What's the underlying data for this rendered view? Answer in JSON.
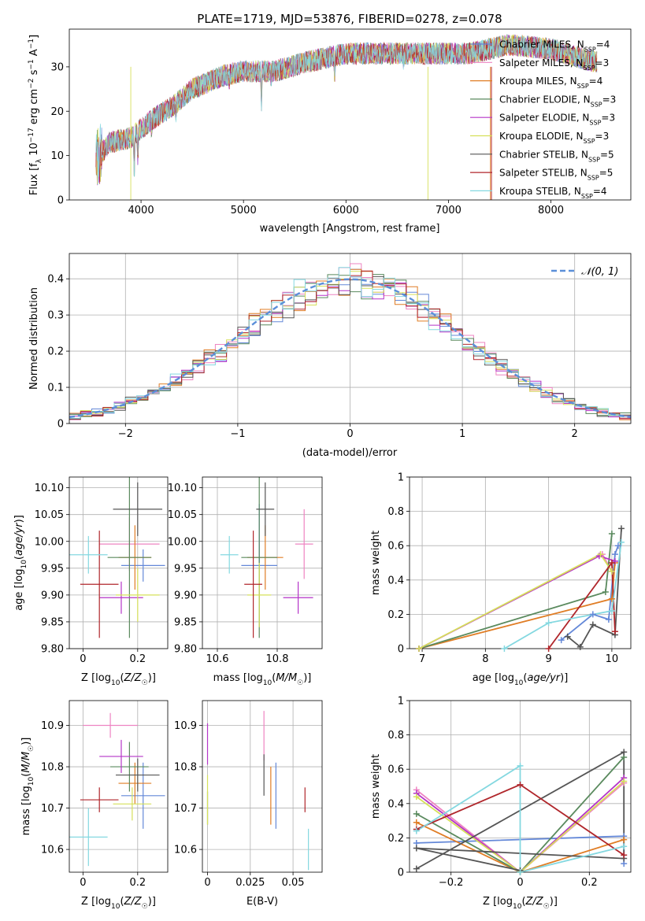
{
  "title": "PLATE=1719, MJD=53876, FIBERID=0278, z=0.078",
  "models": [
    {
      "name": "Chabrier MILES, N",
      "nssp": "4",
      "color": "#6488d8"
    },
    {
      "name": "Salpeter MILES, N",
      "nssp": "3",
      "color": "#ee84c2"
    },
    {
      "name": "Kroupa MILES, N",
      "nssp": "4",
      "color": "#e07d25"
    },
    {
      "name": "Chabrier ELODIE, N",
      "nssp": "3",
      "color": "#5a8a5e"
    },
    {
      "name": "Salpeter ELODIE, N",
      "nssp": "3",
      "color": "#b535c8"
    },
    {
      "name": "Kroupa ELODIE, N",
      "nssp": "3",
      "color": "#d6e05a"
    },
    {
      "name": "Chabrier STELIB, N",
      "nssp": "5",
      "color": "#555555"
    },
    {
      "name": "Salpeter STELIB, N",
      "nssp": "5",
      "color": "#b0262b"
    },
    {
      "name": "Kroupa STELIB, N",
      "nssp": "4",
      "color": "#84d8e0"
    }
  ],
  "chart_data": [
    {
      "type": "line",
      "name": "spectrum",
      "title": "PLATE=1719, MJD=53876, FIBERID=0278, z=0.078",
      "xlabel": "wavelength [Angstrom, rest frame]",
      "ylabel": "Flux [f_λ 10^-17 erg cm^-2 s^-1 A^-1]",
      "xlim": [
        3300,
        8780
      ],
      "ylim": [
        0,
        38.5
      ],
      "xticks": [
        4000,
        5000,
        6000,
        7000,
        8000
      ],
      "yticks": [
        0,
        10,
        20,
        30
      ],
      "grid": false,
      "legend": "right",
      "continuum": {
        "x": [
          3560,
          3700,
          3900,
          4100,
          4300,
          4500,
          4800,
          5000,
          5300,
          5600,
          6000,
          6400,
          6800,
          7200,
          7600,
          8000,
          8300,
          8450
        ],
        "y": [
          9,
          13,
          14,
          18,
          21,
          25,
          28,
          29,
          29,
          31,
          33,
          33,
          33,
          33,
          35,
          34,
          32,
          31
        ]
      }
    },
    {
      "type": "line",
      "name": "residual-histogram",
      "xlabel": "(data-model)/error",
      "ylabel": "Normed distribution",
      "xlim": [
        -2.5,
        2.5
      ],
      "ylim": [
        0,
        0.47
      ],
      "xticks": [
        -2,
        -1,
        0,
        1,
        2
      ],
      "yticks": [
        0,
        0.1,
        0.2,
        0.3,
        0.4
      ],
      "grid": true,
      "legend": "top-right",
      "series": [
        {
          "name": "𝒩(0, 1)",
          "style": "dashed",
          "color": "#5b8fd9"
        }
      ]
    },
    {
      "type": "scatter",
      "name": "age-vs-Z",
      "xlabel": "Z [log10(Z/Z☉)]",
      "ylabel": "age [log10(age/yr)]",
      "xlim": [
        -0.05,
        0.31
      ],
      "ylim": [
        9.8,
        10.12
      ],
      "xticks": [
        0.0,
        0.2
      ],
      "yticks": [
        9.8,
        9.85,
        9.9,
        9.95,
        10.0,
        10.05,
        10.1
      ],
      "grid": true,
      "points": [
        {
          "x": 0.22,
          "y": 9.955,
          "ex": 0.08,
          "ey": 0.03
        },
        {
          "x": 0.17,
          "y": 9.995,
          "ex": 0.11,
          "ey": 0.05
        },
        {
          "x": 0.19,
          "y": 9.97,
          "ex": 0.06,
          "ey": 0.06
        },
        {
          "x": 0.17,
          "y": 9.97,
          "ex": 0.08,
          "ey": 0.15
        },
        {
          "x": 0.14,
          "y": 9.895,
          "ex": 0.08,
          "ey": 0.03
        },
        {
          "x": 0.2,
          "y": 9.9,
          "ex": 0.08,
          "ey": 0.05
        },
        {
          "x": 0.2,
          "y": 10.06,
          "ex": 0.09,
          "ey": 0.05
        },
        {
          "x": 0.06,
          "y": 9.92,
          "ex": 0.07,
          "ey": 0.1
        },
        {
          "x": 0.02,
          "y": 9.975,
          "ex": 0.07,
          "ey": 0.035
        }
      ]
    },
    {
      "type": "scatter",
      "name": "age-vs-mass",
      "xlabel": "mass [log10(M/M☉)]",
      "ylabel": "",
      "xlim": [
        10.55,
        10.95
      ],
      "ylim": [
        9.8,
        10.12
      ],
      "xticks": [
        10.6,
        10.8
      ],
      "yticks": [
        9.8,
        9.85,
        9.9,
        9.95,
        10.0,
        10.05,
        10.1
      ],
      "grid": true,
      "points": [
        {
          "x": 10.74,
          "y": 9.955,
          "ex": 0.06,
          "ey": 0.115
        },
        {
          "x": 10.89,
          "y": 9.995,
          "ex": 0.03,
          "ey": 0.065
        },
        {
          "x": 10.76,
          "y": 9.97,
          "ex": 0.06,
          "ey": 0.06
        },
        {
          "x": 10.74,
          "y": 9.97,
          "ex": 0.06,
          "ey": 0.15
        },
        {
          "x": 10.87,
          "y": 9.895,
          "ex": 0.05,
          "ey": 0.03
        },
        {
          "x": 10.74,
          "y": 9.9,
          "ex": 0.04,
          "ey": 0.06
        },
        {
          "x": 10.76,
          "y": 10.06,
          "ex": 0.03,
          "ey": 0.05
        },
        {
          "x": 10.72,
          "y": 9.92,
          "ex": 0.03,
          "ey": 0.1
        },
        {
          "x": 10.64,
          "y": 9.975,
          "ex": 0.03,
          "ey": 0.035
        }
      ]
    },
    {
      "type": "line",
      "name": "mass-weight-vs-age",
      "xlabel": "age [log10(age/yr)]",
      "ylabel": "mass weight",
      "xlim": [
        6.8,
        10.3
      ],
      "ylim": [
        0,
        1.0
      ],
      "xticks": [
        7,
        8,
        9,
        10
      ],
      "yticks": [
        0,
        0.2,
        0.4,
        0.6,
        0.8,
        1.0
      ],
      "grid": true,
      "series": [
        {
          "x": [
            9.2,
            9.7,
            9.95,
            10.05,
            10.1
          ],
          "y": [
            0.05,
            0.2,
            0.17,
            0.55,
            0.6
          ]
        },
        {
          "x": [
            6.95,
            9.85,
            10.0
          ],
          "y": [
            0.0,
            0.55,
            0.45
          ]
        },
        {
          "x": [
            6.95,
            10.0,
            10.05
          ],
          "y": [
            0.0,
            0.29,
            0.5
          ]
        },
        {
          "x": [
            6.95,
            9.9,
            10.0
          ],
          "y": [
            0.0,
            0.33,
            0.67
          ]
        },
        {
          "x": [
            6.95,
            9.8,
            10.05
          ],
          "y": [
            0.0,
            0.54,
            0.51
          ]
        },
        {
          "x": [
            6.95,
            9.82,
            10.0
          ],
          "y": [
            0.0,
            0.55,
            0.45
          ]
        },
        {
          "x": [
            9.3,
            9.5,
            9.7,
            10.05,
            10.15
          ],
          "y": [
            0.07,
            0.01,
            0.14,
            0.08,
            0.7
          ]
        },
        {
          "x": [
            9.0,
            10.0,
            10.05
          ],
          "y": [
            0.0,
            0.5,
            0.1
          ]
        },
        {
          "x": [
            8.3,
            9.0,
            10.0,
            10.15
          ],
          "y": [
            0.0,
            0.15,
            0.22,
            0.62
          ]
        }
      ]
    },
    {
      "type": "scatter",
      "name": "mass-vs-Z",
      "xlabel": "Z [log10(Z/Z☉)]",
      "ylabel": "mass [log10(M/M☉)]",
      "xlim": [
        -0.05,
        0.31
      ],
      "ylim": [
        10.545,
        10.96
      ],
      "xticks": [
        0.0,
        0.2
      ],
      "yticks": [
        10.6,
        10.7,
        10.8,
        10.9
      ],
      "grid": true,
      "points": [
        {
          "x": 0.22,
          "y": 10.73,
          "ex": 0.08,
          "ey": 0.08
        },
        {
          "x": 0.1,
          "y": 10.9,
          "ex": 0.1,
          "ey": 0.03
        },
        {
          "x": 0.19,
          "y": 10.76,
          "ex": 0.06,
          "ey": 0.05
        },
        {
          "x": 0.17,
          "y": 10.8,
          "ex": 0.07,
          "ey": 0.06
        },
        {
          "x": 0.14,
          "y": 10.825,
          "ex": 0.08,
          "ey": 0.04
        },
        {
          "x": 0.18,
          "y": 10.71,
          "ex": 0.07,
          "ey": 0.04
        },
        {
          "x": 0.2,
          "y": 10.78,
          "ex": 0.08,
          "ey": 0.04
        },
        {
          "x": 0.06,
          "y": 10.72,
          "ex": 0.07,
          "ey": 0.03
        },
        {
          "x": 0.02,
          "y": 10.63,
          "ex": 0.07,
          "ey": 0.07
        }
      ]
    },
    {
      "type": "scatter",
      "name": "mass-vs-ebv",
      "xlabel": "E(B-V)",
      "ylabel": "",
      "xlim": [
        -0.003,
        0.067
      ],
      "ylim": [
        10.545,
        10.96
      ],
      "xticks": [
        0.0,
        0.025,
        0.05
      ],
      "yticks": [
        10.6,
        10.7,
        10.8,
        10.9
      ],
      "grid": true,
      "points": [
        {
          "x": 0.04,
          "y": 10.73,
          "ex": 0,
          "ey": 0.08
        },
        {
          "x": 0.033,
          "y": 10.875,
          "ex": 0,
          "ey": 0.06
        },
        {
          "x": 0.037,
          "y": 10.73,
          "ex": 0,
          "ey": 0.07
        },
        {
          "x": 0.0,
          "y": 10.7,
          "ex": 0,
          "ey": 0.04
        },
        {
          "x": 0.0,
          "y": 10.855,
          "ex": 0,
          "ey": 0.05
        },
        {
          "x": 0.0,
          "y": 10.72,
          "ex": 0,
          "ey": 0.06
        },
        {
          "x": 0.033,
          "y": 10.78,
          "ex": 0,
          "ey": 0.05
        },
        {
          "x": 0.057,
          "y": 10.72,
          "ex": 0,
          "ey": 0.03
        },
        {
          "x": 0.059,
          "y": 10.6,
          "ex": 0,
          "ey": 0.05
        }
      ]
    },
    {
      "type": "line",
      "name": "mass-weight-vs-Z",
      "xlabel": "Z [log10(Z/Z☉)]",
      "ylabel": "mass weight",
      "xlim": [
        -0.32,
        0.32
      ],
      "ylim": [
        0,
        1.0
      ],
      "xticks": [
        -0.2,
        0.0,
        0.2
      ],
      "yticks": [
        0,
        0.2,
        0.4,
        0.6,
        0.8,
        1.0
      ],
      "grid": true,
      "series": [
        {
          "x": [
            -0.3,
            0.3,
            0.3
          ],
          "y": [
            0.17,
            0.21,
            0.05
          ]
        },
        {
          "x": [
            -0.3,
            0.0,
            0.3
          ],
          "y": [
            0.48,
            0.0,
            0.52
          ]
        },
        {
          "x": [
            -0.3,
            0.0,
            0.3
          ],
          "y": [
            0.29,
            0.0,
            0.19
          ]
        },
        {
          "x": [
            -0.3,
            0.0,
            0.3
          ],
          "y": [
            0.34,
            0.0,
            0.67
          ]
        },
        {
          "x": [
            -0.3,
            0.0,
            0.3
          ],
          "y": [
            0.46,
            0.0,
            0.55
          ]
        },
        {
          "x": [
            -0.3,
            0.0,
            0.3
          ],
          "y": [
            0.44,
            0.0,
            0.53
          ]
        },
        {
          "x": [
            -0.3,
            0.3,
            0.3,
            -0.3,
            0.0
          ],
          "y": [
            0.02,
            0.7,
            0.08,
            0.14,
            0.01
          ]
        },
        {
          "x": [
            -0.3,
            0.0,
            0.3
          ],
          "y": [
            0.25,
            0.51,
            0.1
          ]
        },
        {
          "x": [
            -0.3,
            0.0,
            0.0,
            0.3
          ],
          "y": [
            0.24,
            0.62,
            0.0,
            0.15
          ]
        }
      ]
    }
  ]
}
